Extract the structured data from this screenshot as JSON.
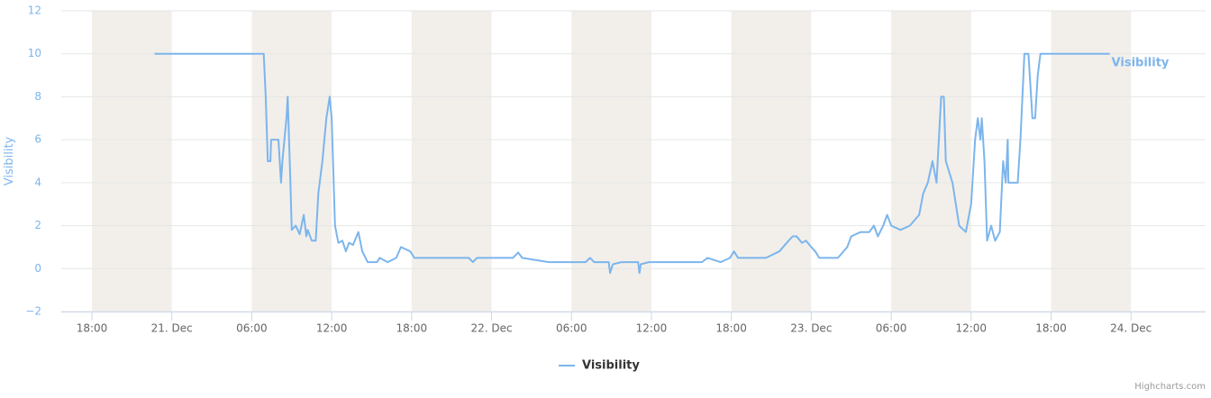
{
  "chart_data": {
    "type": "line",
    "y_axis_label": "Visibility",
    "credits": "Highcharts.com",
    "xlim": [
      -2.3,
      83.6
    ],
    "xticks": [
      {
        "value": 0,
        "label": "18:00"
      },
      {
        "value": 6,
        "label": "21. Dec"
      },
      {
        "value": 12,
        "label": "06:00"
      },
      {
        "value": 18,
        "label": "12:00"
      },
      {
        "value": 24,
        "label": "18:00"
      },
      {
        "value": 30,
        "label": "22. Dec"
      },
      {
        "value": 36,
        "label": "06:00"
      },
      {
        "value": 42,
        "label": "12:00"
      },
      {
        "value": 48,
        "label": "18:00"
      },
      {
        "value": 54,
        "label": "23. Dec"
      },
      {
        "value": 60,
        "label": "06:00"
      },
      {
        "value": 66,
        "label": "12:00"
      },
      {
        "value": 72,
        "label": "18:00"
      },
      {
        "value": 78,
        "label": "24. Dec"
      }
    ],
    "ylim": [
      -2,
      12
    ],
    "yticks": [
      {
        "value": -2,
        "label": "−2"
      },
      0,
      2,
      4,
      6,
      8,
      10,
      12
    ],
    "grid": true,
    "night_bands": true,
    "legend": "bottom",
    "x": [
      4.7,
      12.9,
      13.05,
      13.2,
      13.4,
      13.45,
      14.0,
      14.2,
      14.3,
      14.6,
      14.7,
      14.9,
      15.0,
      15.3,
      15.6,
      15.9,
      16.1,
      16.2,
      16.5,
      16.8,
      17.0,
      17.3,
      17.6,
      17.85,
      18.0,
      18.1,
      18.25,
      18.5,
      18.8,
      19.07,
      19.3,
      19.6,
      20.0,
      20.3,
      20.7,
      21.4,
      21.6,
      22.2,
      22.85,
      23.2,
      23.9,
      24.2,
      28.3,
      28.6,
      28.9,
      31.6,
      32.0,
      32.3,
      34.3,
      37.05,
      37.4,
      37.7,
      38.8,
      38.9,
      39.1,
      39.75,
      41.0,
      41.1,
      41.2,
      41.8,
      45.8,
      46.2,
      47.2,
      47.9,
      48.2,
      48.5,
      50.6,
      51.6,
      52.3,
      52.6,
      52.9,
      53.3,
      53.6,
      54.0,
      54.3,
      54.6,
      56.0,
      56.7,
      57.0,
      57.7,
      58.35,
      58.7,
      59.0,
      59.4,
      59.7,
      60.0,
      60.7,
      61.4,
      62.1,
      62.4,
      62.75,
      63.1,
      63.4,
      63.75,
      63.95,
      64.1,
      64.6,
      65.1,
      65.6,
      66.0,
      66.3,
      66.5,
      66.7,
      66.8,
      67.0,
      67.2,
      67.5,
      67.8,
      68.15,
      68.4,
      68.6,
      68.75,
      68.8,
      69.5,
      69.7,
      70.0,
      70.3,
      70.6,
      70.8,
      71.0,
      71.2,
      76.4
    ],
    "series": [
      {
        "name": "Visibility",
        "color": "#7cb5ec",
        "values": [
          10,
          10,
          8,
          5,
          5,
          6,
          6,
          4,
          5,
          7,
          8,
          4,
          1.8,
          2,
          1.6,
          2.5,
          1.5,
          1.8,
          1.3,
          1.3,
          3.5,
          5,
          7,
          8,
          7,
          5,
          2,
          1.2,
          1.3,
          0.8,
          1.2,
          1.1,
          1.7,
          0.8,
          0.3,
          0.3,
          0.5,
          0.3,
          0.5,
          1,
          0.8,
          0.5,
          0.5,
          0.3,
          0.5,
          0.5,
          0.75,
          0.5,
          0.3,
          0.3,
          0.5,
          0.3,
          0.3,
          -0.2,
          0.2,
          0.3,
          0.3,
          -0.2,
          0.2,
          0.3,
          0.3,
          0.5,
          0.3,
          0.5,
          0.8,
          0.5,
          0.5,
          0.8,
          1.3,
          1.5,
          1.5,
          1.2,
          1.3,
          1,
          0.8,
          0.5,
          0.5,
          1,
          1.5,
          1.7,
          1.7,
          2,
          1.5,
          2,
          2.5,
          2,
          1.8,
          2,
          2.5,
          3.5,
          4,
          5,
          4,
          8,
          8,
          5,
          4,
          2,
          1.7,
          3,
          6,
          7,
          6,
          7,
          5,
          1.3,
          2,
          1.3,
          1.7,
          5,
          4,
          6,
          4,
          4,
          6,
          10,
          10,
          7,
          7,
          9,
          10,
          10
        ]
      }
    ]
  }
}
